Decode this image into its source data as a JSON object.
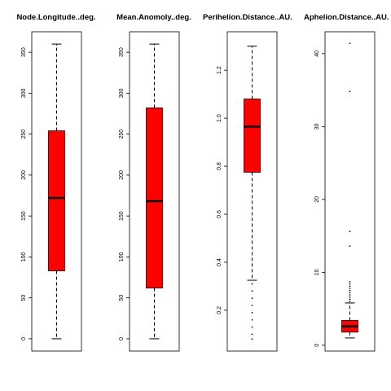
{
  "chart_data": [
    {
      "type": "box",
      "title": "Node.Longitude..deg.",
      "ylim": [
        -15,
        375
      ],
      "yticks": [
        0,
        50,
        100,
        150,
        200,
        250,
        300,
        350
      ],
      "ytick_labels": [
        "0",
        "50",
        "100",
        "150",
        "200",
        "250",
        "300",
        "350"
      ],
      "box": {
        "whisker_low": 0,
        "q1": 83,
        "median": 172,
        "q3": 254,
        "whisker_high": 360
      },
      "outliers": [],
      "fill_color": "#ff0000"
    },
    {
      "type": "box",
      "title": "Mean.Anomoly..deg.",
      "ylim": [
        -15,
        375
      ],
      "yticks": [
        0,
        50,
        100,
        150,
        200,
        250,
        300,
        350
      ],
      "ytick_labels": [
        "0",
        "50",
        "100",
        "150",
        "200",
        "250",
        "300",
        "350"
      ],
      "box": {
        "whisker_low": 0,
        "q1": 62,
        "median": 168,
        "q3": 282,
        "whisker_high": 360
      },
      "outliers": [],
      "fill_color": "#ff0000"
    },
    {
      "type": "box",
      "title": "Perihelion.Distance..AU.",
      "ylim": [
        0.03,
        1.36
      ],
      "yticks": [
        0.2,
        0.4,
        0.6,
        0.8,
        1.0,
        1.2
      ],
      "ytick_labels": [
        "0.2",
        "0.4",
        "0.6",
        "0.8",
        "1.0",
        "1.2"
      ],
      "box": {
        "whisker_low": 0.325,
        "q1": 0.775,
        "median": 0.965,
        "q3": 1.08,
        "whisker_high": 1.3
      },
      "outliers": [
        0.31,
        0.28,
        0.25,
        0.22,
        0.19,
        0.16,
        0.13,
        0.1,
        0.08
      ],
      "fill_color": "#ff0000"
    },
    {
      "type": "box",
      "title": "Aphelion.Distance..AU.",
      "ylim": [
        -0.8,
        43.0
      ],
      "yticks": [
        0,
        10,
        20,
        30,
        40
      ],
      "ytick_labels": [
        "0",
        "10",
        "20",
        "30",
        "40"
      ],
      "box": {
        "whisker_low": 1.0,
        "q1": 1.8,
        "median": 2.6,
        "q3": 3.4,
        "whisker_high": 5.8
      },
      "outliers": [
        6.0,
        6.3,
        6.6,
        6.9,
        7.2,
        7.5,
        7.8,
        8.1,
        8.4,
        8.7,
        13.6,
        15.6,
        34.8,
        41.4
      ],
      "fill_color": "#ff0000"
    }
  ]
}
